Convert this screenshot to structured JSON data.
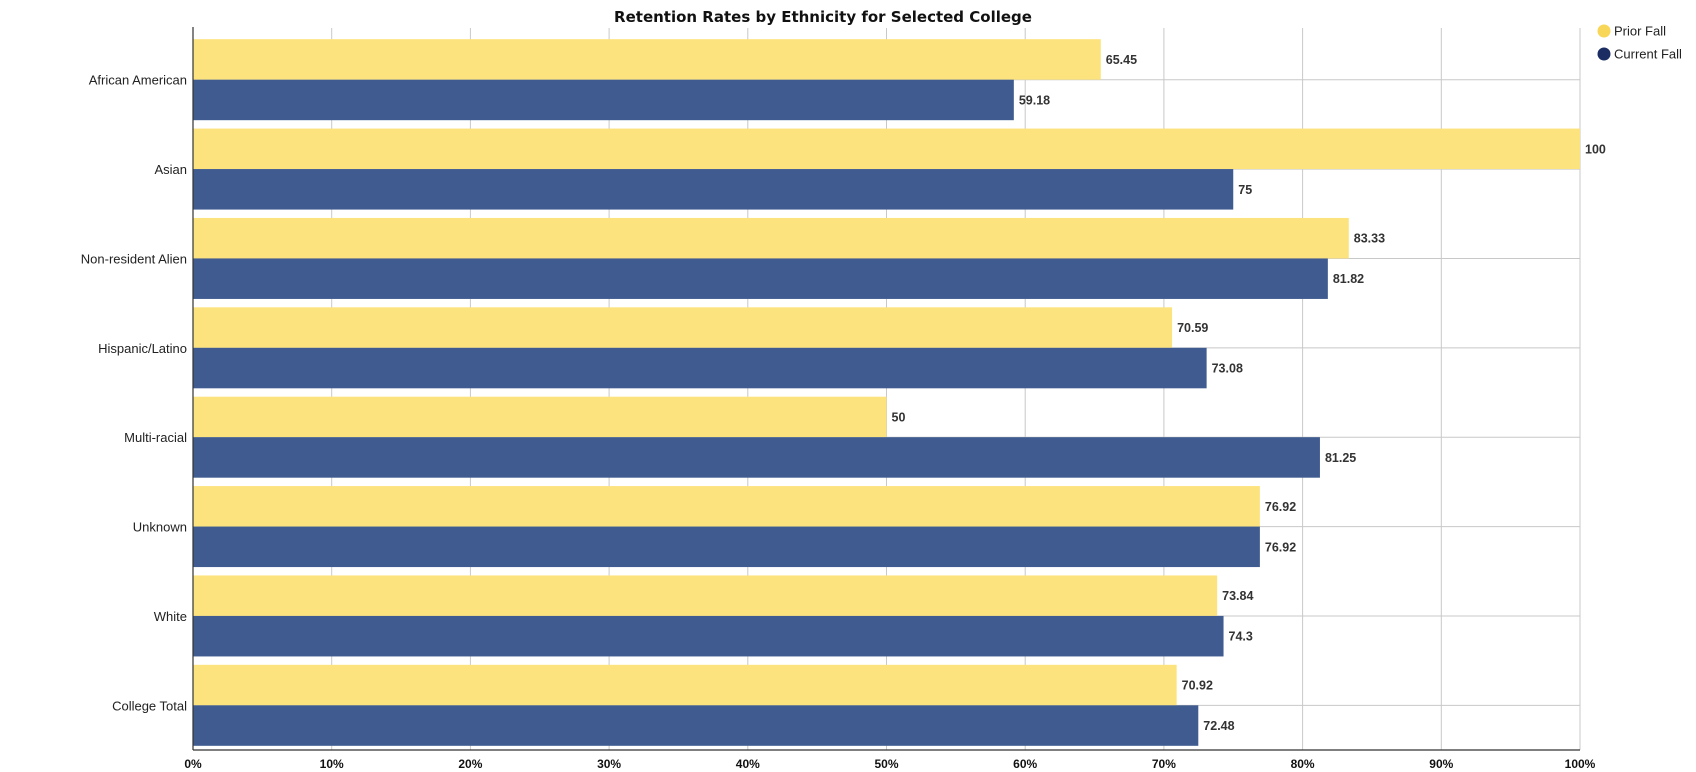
{
  "chart_data": {
    "type": "bar",
    "orientation": "horizontal",
    "title": "Retention Rates by Ethnicity for Selected College",
    "categories": [
      "African American",
      "Asian",
      "Non-resident Alien",
      "Hispanic/Latino",
      "Multi-racial",
      "Unknown",
      "White",
      "College Total"
    ],
    "series": [
      {
        "name": "Prior Fall",
        "color": "#fde37d",
        "values": [
          65.45,
          100,
          83.33,
          70.59,
          50,
          76.92,
          73.84,
          70.92
        ]
      },
      {
        "name": "Current Fall",
        "color": "#3f5b8f",
        "values": [
          59.18,
          75,
          81.82,
          73.08,
          81.25,
          76.92,
          74.3,
          72.48
        ]
      }
    ],
    "data_labels": [
      [
        "65.45",
        "100",
        "83.33",
        "70.59",
        "50",
        "76.92",
        "73.84",
        "70.92"
      ],
      [
        "59.18",
        "75",
        "81.82",
        "73.08",
        "81.25",
        "76.92",
        "74.3",
        "72.48"
      ]
    ],
    "x_ticks": [
      "0%",
      "10%",
      "20%",
      "30%",
      "40%",
      "50%",
      "60%",
      "70%",
      "80%",
      "90%",
      "100%"
    ],
    "xlim": [
      0,
      100
    ],
    "grid": true,
    "legend": {
      "position": "top-right",
      "items": [
        {
          "label": "Prior Fall",
          "marker_color": "#f8d657"
        },
        {
          "label": "Current Fall",
          "marker_color": "#1b2d63"
        }
      ]
    }
  }
}
